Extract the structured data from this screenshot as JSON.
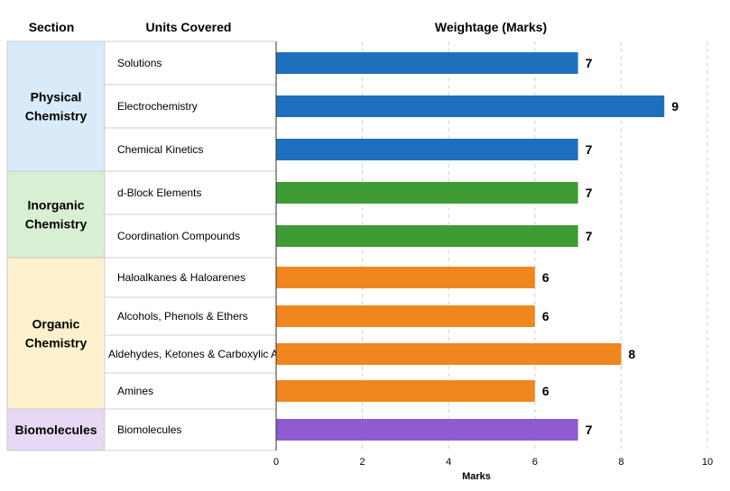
{
  "headers": {
    "section": "Section",
    "units": "Units Covered",
    "weightage": "Weightage (Marks)"
  },
  "chart_data": {
    "type": "bar",
    "orientation": "horizontal",
    "title": "Weightage (Marks)",
    "xlabel": "Marks",
    "xlim": [
      0,
      10
    ],
    "xticks": [
      0,
      2,
      4,
      6,
      8,
      10
    ],
    "grid": "vertical dashed",
    "sections": [
      {
        "name": "Physical Chemistry",
        "lines": [
          "Physical",
          "Chemistry"
        ],
        "fill": "#d9ebf9",
        "bar_color": "#1f6fbf"
      },
      {
        "name": "Inorganic Chemistry",
        "lines": [
          "Inorganic",
          "Chemistry"
        ],
        "fill": "#d9efd3",
        "bar_color": "#3f9c35"
      },
      {
        "name": "Organic Chemistry",
        "lines": [
          "Organic",
          "Chemistry"
        ],
        "fill": "#fdf0cc",
        "bar_color": "#f0861e"
      },
      {
        "name": "Biomolecules",
        "lines": [
          "Biomolecules"
        ],
        "fill": "#e5d9f5",
        "bar_color": "#8e5bd0"
      }
    ],
    "categories": [
      "Solutions",
      "Electrochemistry",
      "Chemical Kinetics",
      "d-Block Elements",
      "Coordination Compounds",
      "Haloalkanes & Haloarenes",
      "Alcohols, Phenols & Ethers",
      "Aldehydes, Ketones & Carboxylic Acids",
      "Amines",
      "Biomolecules"
    ],
    "category_section": [
      0,
      0,
      0,
      1,
      1,
      2,
      2,
      2,
      2,
      3
    ],
    "values": [
      7,
      9,
      7,
      7,
      7,
      6,
      6,
      8,
      6,
      7
    ]
  }
}
